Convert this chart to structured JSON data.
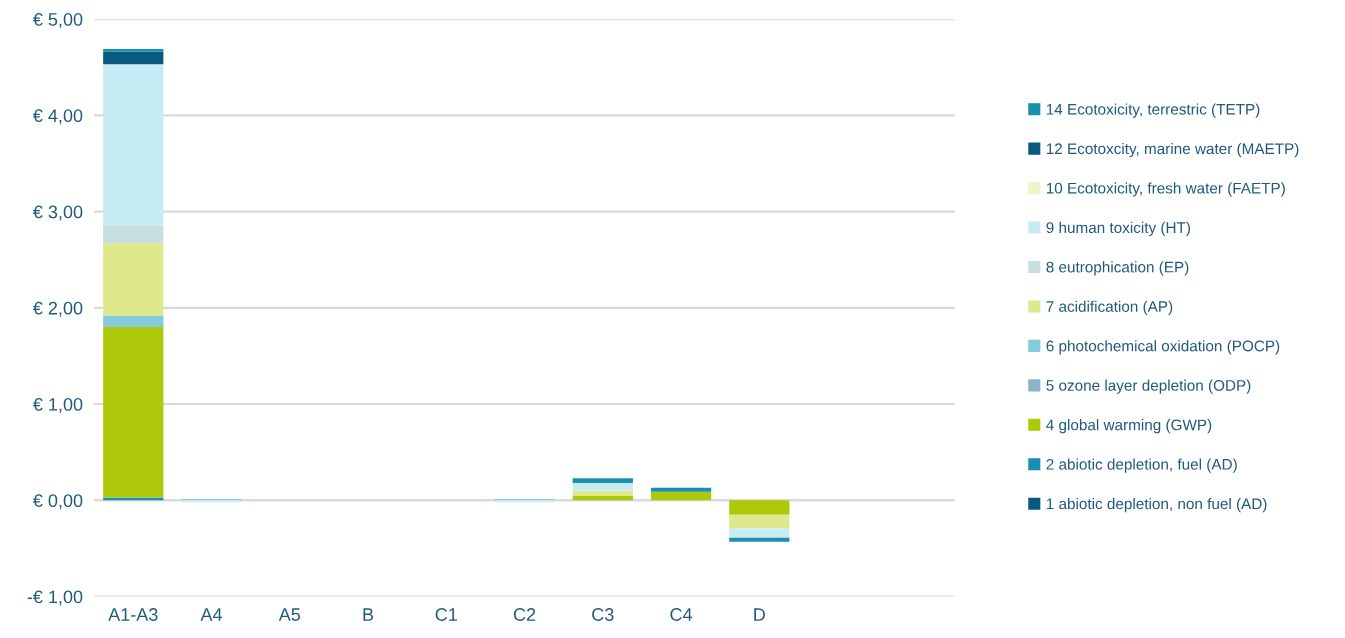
{
  "chart_data": {
    "type": "bar",
    "stacked": true,
    "categories": [
      "A1-A3",
      "A4",
      "A5",
      "B",
      "C1",
      "C2",
      "C3",
      "C4",
      "D",
      null,
      null
    ],
    "series": [
      {
        "name": "1 abiotic depletion, non fuel (AD)",
        "color": "#0a5a80",
        "values": [
          0,
          0,
          0,
          0,
          0,
          0,
          0,
          0,
          0,
          0,
          0
        ]
      },
      {
        "name": "2 abiotic depletion, fuel (AD)",
        "color": "#1a8fb0",
        "values": [
          0.03,
          0,
          0,
          0,
          0,
          0,
          0,
          0,
          0,
          0,
          0
        ]
      },
      {
        "name": "4 global warming (GWP)",
        "color": "#adc90a",
        "values": [
          1.77,
          0,
          0,
          0,
          0,
          0,
          0.05,
          0.09,
          -0.15,
          0,
          0
        ]
      },
      {
        "name": "5 ozone layer depletion (ODP)",
        "color": "#8fb3c5",
        "values": [
          0,
          0.01,
          0,
          0,
          0,
          0.01,
          0,
          0,
          0,
          0,
          0
        ]
      },
      {
        "name": "6 photochemical oxidation (POCP)",
        "color": "#86cbdc",
        "values": [
          0.12,
          0,
          0,
          0,
          0,
          0,
          0,
          0,
          0,
          0,
          0
        ]
      },
      {
        "name": "7 acidification (AP)",
        "color": "#dde98a",
        "values": [
          0.75,
          0,
          0,
          0,
          0,
          0,
          0.05,
          0,
          -0.14,
          0,
          0
        ]
      },
      {
        "name": "8 eutrophication (EP)",
        "color": "#c8dfe0",
        "values": [
          0.18,
          0,
          0,
          0,
          0,
          0,
          0,
          0,
          0,
          0,
          0
        ]
      },
      {
        "name": "9 human toxicity (HT)",
        "color": "#c8ecf3",
        "values": [
          1.68,
          -0.02,
          0,
          0,
          0,
          -0.02,
          0.08,
          0,
          -0.1,
          0,
          0
        ]
      },
      {
        "name": "10 Ecotoxicity, fresh water (FAETP)",
        "color": "#f0f5c8",
        "values": [
          0,
          0,
          0,
          0,
          0,
          0,
          0,
          0,
          0,
          0,
          0
        ]
      },
      {
        "name": "12 Ecotoxcity, marine water (MAETP)",
        "color": "#0a5a80",
        "values": [
          0.13,
          0,
          0,
          0,
          0,
          0,
          0,
          0,
          0,
          0,
          0
        ]
      },
      {
        "name": "14 Ecotoxicity, terrestric (TETP)",
        "color": "#1a8fb0",
        "values": [
          0.03,
          0,
          0,
          0,
          0,
          0,
          0.05,
          0.04,
          -0.04,
          0,
          0
        ]
      }
    ],
    "ylim": [
      -1,
      5
    ],
    "yticks": [
      {
        "value": -1,
        "label": "-€ 1,00"
      },
      {
        "value": 0,
        "label": "€ 0,00"
      },
      {
        "value": 1,
        "label": "€ 1,00"
      },
      {
        "value": 2,
        "label": "€ 2,00"
      },
      {
        "value": 3,
        "label": "€ 3,00"
      },
      {
        "value": 4,
        "label": "€ 4,00"
      },
      {
        "value": 5,
        "label": "€ 5,00"
      }
    ],
    "grid": "y",
    "legend": "right"
  }
}
